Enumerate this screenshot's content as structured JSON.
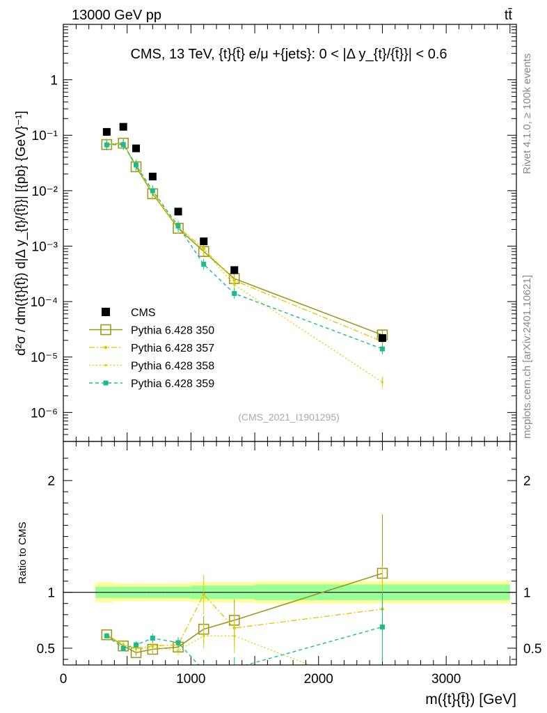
{
  "header": {
    "left": "13000 GeV pp",
    "right": "tt̄"
  },
  "side_labels": {
    "rivet": "Rivet 4.1.0, ≥ 100k events",
    "mcplots": "mcplots.cern.ch [arXiv:2401.10621]"
  },
  "colors": {
    "cms": "#000000",
    "p350": "#9a9a20",
    "p357": "#e6c200",
    "p358": "#d4d400",
    "p359": "#1abc8c",
    "band_outer": "#ffff99",
    "band_inner": "#99ff99"
  },
  "chart_data": [
    {
      "type": "scatter",
      "title": "CMS, 13 TeV, {t}{t̄} e/μ +{jets}: 0 < |Δ y_{t}/{t̄}}| < 0.6",
      "watermark": "(CMS_2021_I1901295)",
      "ylabel": "d²σ / dm({t}{t̄}) d|Δ y_{t}/{t̄}}| [{pb} {GeV}⁻¹]",
      "yscale": "log",
      "xlim": [
        0,
        3550
      ],
      "ylim": [
        3e-07,
        10
      ],
      "y_ticks": [
        "10⁻⁶",
        "10⁻⁵",
        "10⁻⁴",
        "10⁻³",
        "10⁻²",
        "10⁻¹",
        "1"
      ],
      "x": [
        340,
        470,
        570,
        700,
        900,
        1100,
        1340,
        2500
      ],
      "series": [
        {
          "name": "CMS",
          "key": "cms",
          "values": [
            0.115,
            0.142,
            0.058,
            0.018,
            0.0042,
            0.00122,
            0.00037,
            2.2e-05
          ]
        },
        {
          "name": "Pythia 6.428 350",
          "key": "p350",
          "values": [
            0.068,
            0.072,
            0.027,
            0.0088,
            0.0021,
            0.0008,
            0.00026,
            2.5e-05
          ]
        },
        {
          "name": "Pythia 6.428 357",
          "key": "p357",
          "values": [
            0.07,
            0.07,
            0.029,
            0.0092,
            0.0022,
            0.0009,
            0.00024,
            1.9e-05
          ]
        },
        {
          "name": "Pythia 6.428 358",
          "key": "p358",
          "values": [
            0.069,
            0.071,
            0.028,
            0.009,
            0.0021,
            0.00085,
            0.0002,
            3.5e-06
          ]
        },
        {
          "name": "Pythia 6.428 359",
          "key": "p359",
          "values": [
            0.067,
            0.068,
            0.029,
            0.01,
            0.0023,
            0.00047,
            0.00014,
            1.4e-05
          ]
        }
      ]
    },
    {
      "type": "line",
      "ylabel": "Ratio to CMS",
      "xlabel": "m({t}{t̄}) [GeV]",
      "xlim": [
        0,
        3550
      ],
      "ylim": [
        0.35,
        2.35
      ],
      "x_ticks": [
        "0",
        "1000",
        "2000",
        "3000"
      ],
      "y_ticks": [
        "0.5",
        "1",
        "2"
      ],
      "x": [
        340,
        470,
        570,
        700,
        900,
        1100,
        1340,
        2500
      ],
      "band_edges": [
        250,
        400,
        500,
        650,
        800,
        1000,
        1200,
        1500,
        3500
      ],
      "band_outer": [
        0.09,
        0.08,
        0.08,
        0.08,
        0.08,
        0.09,
        0.09,
        0.1
      ],
      "band_inner": [
        0.05,
        0.05,
        0.05,
        0.05,
        0.05,
        0.06,
        0.06,
        0.07
      ],
      "series": [
        {
          "name": "Pythia 6.428 350",
          "key": "p350",
          "values": [
            0.62,
            0.52,
            0.46,
            0.49,
            0.51,
            0.67,
            0.75,
            1.17
          ]
        },
        {
          "name": "Pythia 6.428 357",
          "key": "p357",
          "values": [
            0.62,
            0.53,
            0.5,
            0.52,
            0.53,
            0.98,
            0.68,
            0.85
          ]
        },
        {
          "name": "Pythia 6.428 358",
          "key": "p358",
          "values": [
            0.61,
            0.52,
            0.49,
            0.51,
            0.48,
            0.61,
            0.61,
            0.1
          ]
        },
        {
          "name": "Pythia 6.428 359",
          "key": "p359",
          "values": [
            0.61,
            0.5,
            0.53,
            0.59,
            0.55,
            0.3,
            0.32,
            0.69
          ]
        }
      ]
    }
  ]
}
